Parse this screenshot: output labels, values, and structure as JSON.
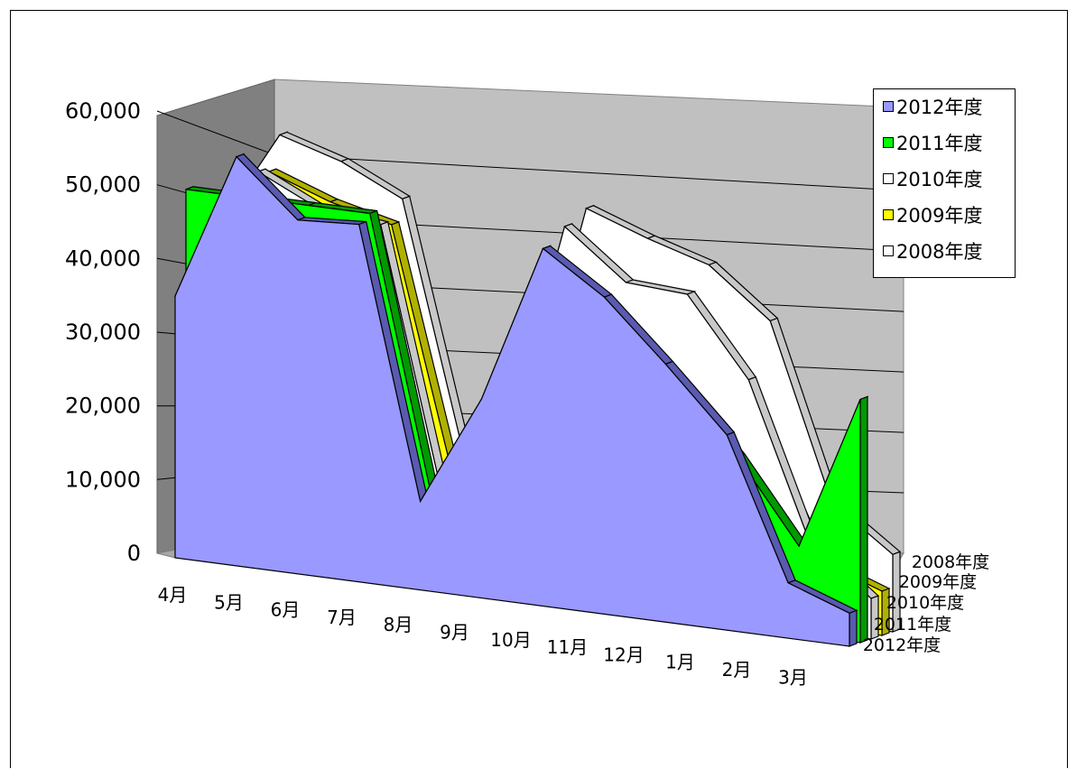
{
  "chart_data": {
    "type": "area",
    "categories": [
      "4月",
      "5月",
      "6月",
      "7月",
      "8月",
      "9月",
      "10月",
      "11月",
      "12月",
      "1月",
      "2月",
      "3月"
    ],
    "ylim": [
      0,
      60000
    ],
    "y_ticks": [
      "0",
      "10,000",
      "20,000",
      "30,000",
      "40,000",
      "50,000",
      "60,000"
    ],
    "depth_labels": [
      "2012年度",
      "2011年度",
      "2010年度",
      "2009年度",
      "2008年度"
    ],
    "legend_position": "top-right",
    "grid": true,
    "series": [
      {
        "name": "2012年度",
        "color": "#9999FF",
        "values": [
          35500,
          55500,
          48000,
          48500,
          12000,
          27000,
          48500,
          43000,
          35000,
          26500,
          7500,
          4500
        ]
      },
      {
        "name": "2011年度",
        "color": "#00FF00",
        "values": [
          49500,
          49500,
          49500,
          49500,
          12500,
          22000,
          38500,
          36500,
          32500,
          23000,
          12000,
          33000
        ]
      },
      {
        "name": "2010年度",
        "color": "#FFFFFF",
        "values": [
          44500,
          52500,
          48500,
          47500,
          12000,
          19000,
          50500,
          44000,
          43500,
          33000,
          12000,
          5500
        ]
      },
      {
        "name": "2009年度",
        "color": "#FFFF00",
        "values": [
          43000,
          52000,
          49000,
          47000,
          14000,
          15000,
          38000,
          33000,
          28500,
          26000,
          9000,
          6000
        ]
      },
      {
        "name": "2008年度",
        "color": "#FFFFFF",
        "values": [
          43000,
          56500,
          54000,
          50000,
          16500,
          20000,
          52000,
          49000,
          46500,
          40000,
          16500,
          10500
        ]
      }
    ]
  }
}
